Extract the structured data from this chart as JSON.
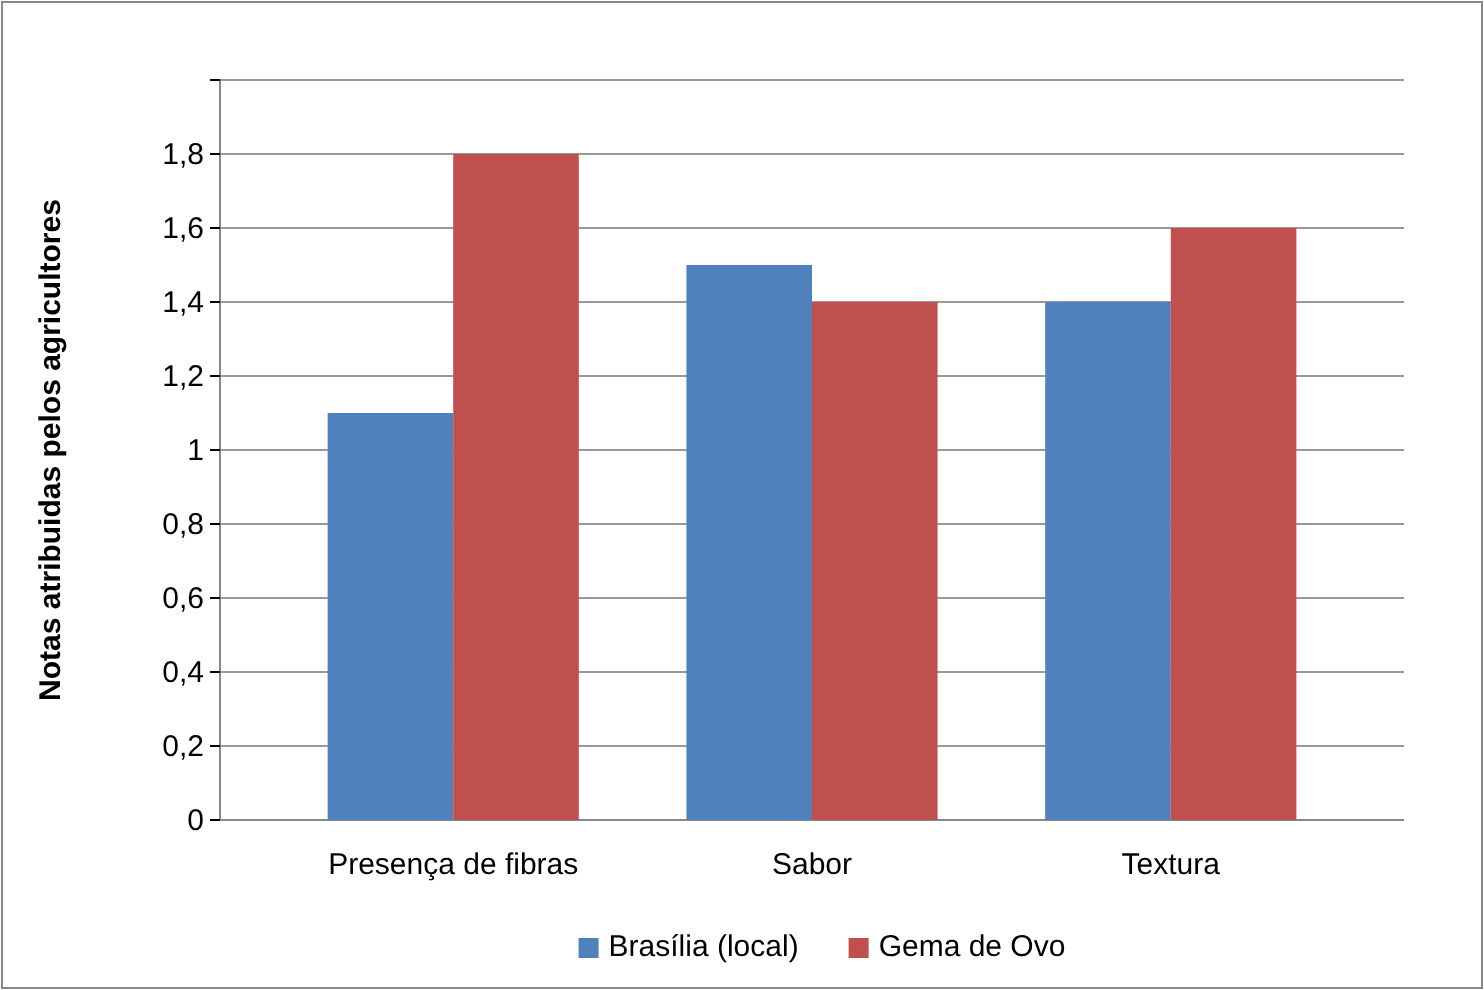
{
  "chart_data": {
    "type": "bar",
    "ylabel": "Notas atribuidas pelos agricultores",
    "categories": [
      "Presença de fibras",
      "Sabor",
      "Textura"
    ],
    "series": [
      {
        "name": "Brasília (local)",
        "color": "#4f81bd",
        "values": [
          1.1,
          1.5,
          1.4
        ]
      },
      {
        "name": "Gema de Ovo",
        "color": "#c0504d",
        "values": [
          1.8,
          1.4,
          1.6
        ]
      }
    ],
    "ylim": [
      0,
      2
    ],
    "yticks": [
      0,
      {
        "value": 0.2,
        "label": "0,2"
      },
      {
        "value": 0.4,
        "label": "0,4"
      },
      {
        "value": 0.6,
        "label": "0,6"
      },
      {
        "value": 0.8,
        "label": "0,8"
      },
      1,
      {
        "value": 1.2,
        "label": "1,2"
      },
      {
        "value": 1.4,
        "label": "1,4"
      },
      {
        "value": 1.6,
        "label": "1,6"
      },
      {
        "value": 1.8,
        "label": "1,8"
      },
      {
        "value": 2,
        "label": null
      }
    ],
    "grid": "y",
    "legend": "bottom"
  }
}
